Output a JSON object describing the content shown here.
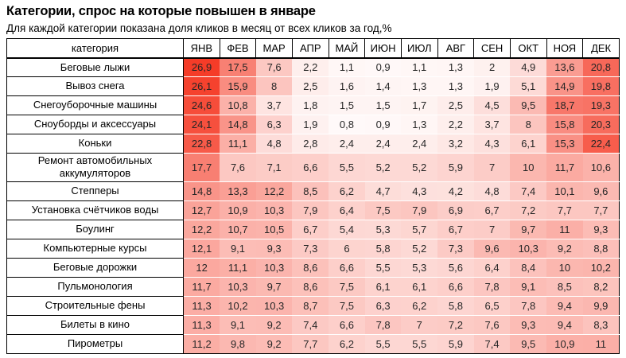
{
  "title": "Категории, спрос на которые повышен в январе",
  "subtitle": "Для каждой категории показана доля кликов в месяц от всех кликов за год,%",
  "colors": {
    "heat_max": "#f53c28",
    "heat_min": "#ffffff",
    "border": "#000000",
    "value_text": "#262626"
  },
  "chart_data": {
    "type": "heatmap",
    "title": "Категории, спрос на которые повышен в январе",
    "subtitle": "Для каждой категории показана доля кликов в месяц от всех кликов за год,%",
    "unit": "%",
    "row_header": "категория",
    "columns": [
      "ЯНВ",
      "ФЕВ",
      "МАР",
      "АПР",
      "МАЙ",
      "ИЮН",
      "ИЮЛ",
      "АВГ",
      "СЕН",
      "ОКТ",
      "НОЯ",
      "ДЕК"
    ],
    "color_scale": {
      "min_value": 0,
      "max_value": 26.9,
      "min_color": "#ffffff",
      "max_color": "#f53c28"
    },
    "rows": [
      {
        "category": "Беговые лыжи",
        "values": [
          26.9,
          17.5,
          7.6,
          2.2,
          1.1,
          0.9,
          1.1,
          1.3,
          2,
          4.9,
          13.6,
          20.8
        ]
      },
      {
        "category": "Вывоз снега",
        "values": [
          26.1,
          15.9,
          8,
          2.5,
          1.6,
          1.4,
          1.3,
          1.3,
          1.9,
          5.1,
          14.9,
          19.8
        ]
      },
      {
        "category": "Снегоуборочные машины",
        "values": [
          24.6,
          10.8,
          3.7,
          1.8,
          1.5,
          1.5,
          1.7,
          2.5,
          4.5,
          9.5,
          18.7,
          19.3
        ]
      },
      {
        "category": "Сноуборды и аксессуары",
        "values": [
          24.1,
          14.8,
          6.3,
          1.9,
          0.8,
          0.9,
          1.3,
          2.2,
          3.7,
          8,
          15.8,
          20.3
        ]
      },
      {
        "category": "Коньки",
        "values": [
          22.8,
          11.1,
          4.8,
          2.8,
          2.4,
          2.4,
          2.4,
          3.2,
          4.3,
          6.1,
          15.3,
          22.4
        ]
      },
      {
        "category": "Ремонт автомобильных аккумуляторов",
        "values": [
          17.7,
          7.6,
          7.1,
          6.6,
          5.5,
          5.2,
          5.2,
          5.9,
          7,
          10,
          11.7,
          10.6
        ]
      },
      {
        "category": "Степперы",
        "values": [
          14.8,
          13.3,
          12.2,
          8.5,
          6.2,
          4.7,
          4.3,
          4.2,
          4.8,
          7.4,
          10.1,
          9.6
        ]
      },
      {
        "category": "Установка счётчиков воды",
        "values": [
          12.7,
          10.9,
          10.3,
          7.9,
          6.4,
          7.5,
          7.9,
          6.9,
          6.7,
          7.2,
          7.7,
          7.7
        ]
      },
      {
        "category": "Боулинг",
        "values": [
          12.2,
          10.7,
          10.5,
          6.7,
          5.4,
          5.3,
          5.7,
          6.7,
          7,
          9.7,
          11,
          9.3
        ]
      },
      {
        "category": "Компьютерные курсы",
        "values": [
          12.1,
          9.1,
          9.3,
          7.3,
          6,
          5.8,
          5.2,
          7.3,
          9.6,
          10.3,
          9.2,
          8.8
        ]
      },
      {
        "category": "Беговые дорожки",
        "values": [
          12,
          11.1,
          10.3,
          8.6,
          6.6,
          5.5,
          5.3,
          5.6,
          6.4,
          8.4,
          10,
          10.2
        ]
      },
      {
        "category": "Пульмонология",
        "values": [
          11.7,
          10.3,
          9.7,
          8.6,
          7.5,
          6.1,
          6.1,
          6.6,
          7.8,
          9.1,
          8.5,
          8.2
        ]
      },
      {
        "category": "Строительные фены",
        "values": [
          11.3,
          10.2,
          10.3,
          8.7,
          7.5,
          6.3,
          6.2,
          5.8,
          6.5,
          7.8,
          9.4,
          9.9
        ]
      },
      {
        "category": "Билеты в кино",
        "values": [
          11.3,
          9.1,
          9.2,
          7.4,
          6.6,
          7.8,
          7,
          7.2,
          7.6,
          9.3,
          9.4,
          8.3
        ]
      },
      {
        "category": "Пирометры",
        "values": [
          11.2,
          9.8,
          9.2,
          7.7,
          6.2,
          5.5,
          5.5,
          5.9,
          7.4,
          9.5,
          10.9,
          11
        ]
      }
    ]
  }
}
